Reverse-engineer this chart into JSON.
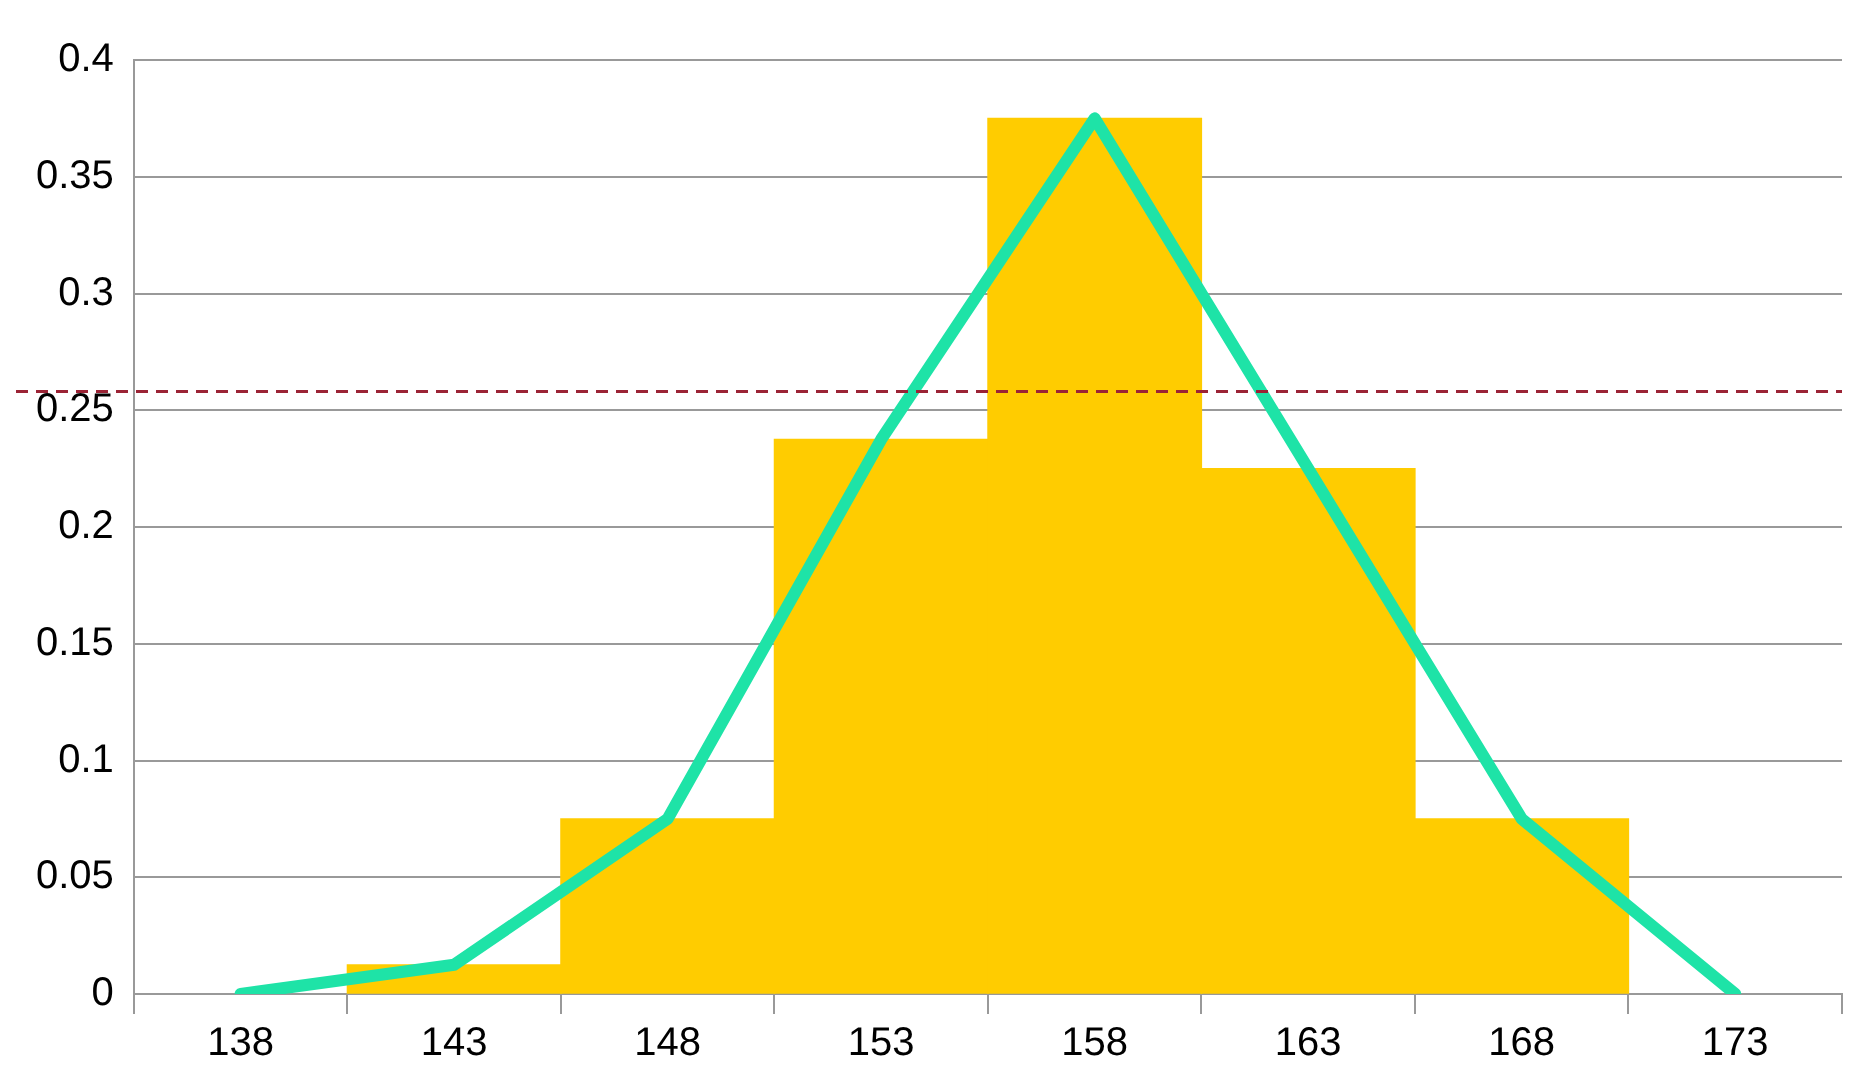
{
  "chart_data": {
    "type": "histogram",
    "bins": [
      140.5,
      145.5,
      150.5,
      155.5,
      160.5,
      165.5,
      170.5
    ],
    "values": [
      0.0125,
      0.075,
      0.2375,
      0.375,
      0.225,
      0.075
    ],
    "color": "#ffcc00",
    "series": [
      {
        "type": "line",
        "x": [
          138,
          143,
          148,
          153,
          158,
          163,
          168,
          173
        ],
        "values": [
          0,
          0.0125,
          0.075,
          0.2375,
          0.375,
          0.225,
          0.075,
          0
        ],
        "color": "#1ee3a7"
      }
    ],
    "xlim": [
      135.5,
      175.5
    ],
    "xticks": [
      {
        "value": 135.5,
        "label": null
      },
      138,
      {
        "value": 140.5,
        "label": null
      },
      143,
      {
        "value": 145.5,
        "label": null
      },
      148,
      {
        "value": 150.5,
        "label": null
      },
      153,
      {
        "value": 155.5,
        "label": null
      },
      158,
      {
        "value": 160.5,
        "label": null
      },
      163,
      {
        "value": 165.5,
        "label": null
      },
      168,
      {
        "value": 170.5,
        "label": null
      },
      173,
      {
        "value": 175.5,
        "label": null
      }
    ],
    "ylim": [
      0,
      0.4
    ],
    "yticks": [
      0,
      0.05,
      0.1,
      0.15,
      0.2,
      0.25,
      0.3,
      0.35,
      0.4
    ],
    "grid": "y",
    "legend": false,
    "marker": "none",
    "ref_lines": [
      {
        "axis": "y",
        "value": 0.258,
        "color": "#9b2335",
        "line_style": "dashed"
      }
    ]
  }
}
